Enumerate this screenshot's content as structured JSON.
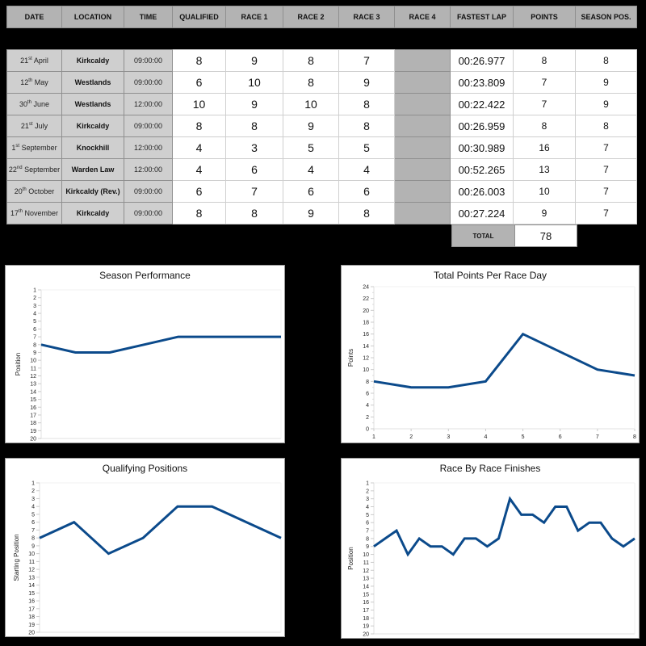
{
  "table": {
    "headers": [
      "DATE",
      "LOCATION",
      "TIME",
      "QUALIFIED",
      "RACE 1",
      "RACE 2",
      "RACE 3",
      "RACE 4",
      "FASTEST LAP",
      "POINTS",
      "SEASON POS."
    ],
    "rows": [
      {
        "day": "21",
        "suffix": "st",
        "month": "April",
        "location": "Kirkcaldy",
        "time": "09:00:00",
        "qualified": "8",
        "race1": "9",
        "race2": "8",
        "race3": "7",
        "race4": "",
        "fastest_lap": "00:26.977",
        "points": "8",
        "season_pos": "8"
      },
      {
        "day": "12",
        "suffix": "th",
        "month": "May",
        "location": "Westlands",
        "time": "09:00:00",
        "qualified": "6",
        "race1": "10",
        "race2": "8",
        "race3": "9",
        "race4": "",
        "fastest_lap": "00:23.809",
        "points": "7",
        "season_pos": "9"
      },
      {
        "day": "30",
        "suffix": "th",
        "month": "June",
        "location": "Westlands",
        "time": "12:00:00",
        "qualified": "10",
        "race1": "9",
        "race2": "10",
        "race3": "8",
        "race4": "",
        "fastest_lap": "00:22.422",
        "points": "7",
        "season_pos": "9"
      },
      {
        "day": "21",
        "suffix": "st",
        "month": "July",
        "location": "Kirkcaldy",
        "time": "09:00:00",
        "qualified": "8",
        "race1": "8",
        "race2": "9",
        "race3": "8",
        "race4": "",
        "fastest_lap": "00:26.959",
        "points": "8",
        "season_pos": "8"
      },
      {
        "day": "1",
        "suffix": "st",
        "month": "September",
        "location": "Knockhill",
        "time": "12:00:00",
        "qualified": "4",
        "race1": "3",
        "race2": "5",
        "race3": "5",
        "race4": "",
        "fastest_lap": "00:30.989",
        "points": "16",
        "season_pos": "7"
      },
      {
        "day": "22",
        "suffix": "nd",
        "month": "September",
        "location": "Warden Law",
        "time": "12:00:00",
        "qualified": "4",
        "race1": "6",
        "race2": "4",
        "race3": "4",
        "race4": "",
        "fastest_lap": "00:52.265",
        "points": "13",
        "season_pos": "7"
      },
      {
        "day": "20",
        "suffix": "th",
        "month": "October",
        "location": "Kirkcaldy (Rev.)",
        "time": "09:00:00",
        "qualified": "6",
        "race1": "7",
        "race2": "6",
        "race3": "6",
        "race4": "",
        "fastest_lap": "00:26.003",
        "points": "10",
        "season_pos": "7"
      },
      {
        "day": "17",
        "suffix": "th",
        "month": "November",
        "location": "Kirkcaldy",
        "time": "09:00:00",
        "qualified": "8",
        "race1": "8",
        "race2": "9",
        "race3": "8",
        "race4": "",
        "fastest_lap": "00:27.224",
        "points": "9",
        "season_pos": "7"
      }
    ],
    "total_label": "TOTAL",
    "total_value": "78"
  },
  "colors": {
    "line": "#0b4a8b",
    "header_bg": "#b3b3b3",
    "label_bg": "#cfcfcf",
    "page_bg": "#000000"
  },
  "chart_data": [
    {
      "type": "line",
      "title": "Season Performance",
      "xlabel": "",
      "ylabel": "Position",
      "ylim": [
        20,
        1
      ],
      "y_inverted": true,
      "y_ticks": [
        1,
        2,
        3,
        4,
        5,
        6,
        7,
        8,
        9,
        10,
        11,
        12,
        13,
        14,
        15,
        16,
        17,
        18,
        19,
        20
      ],
      "x_ticks": [],
      "x": [
        1,
        2,
        3,
        4,
        5,
        6,
        7,
        8
      ],
      "values": [
        8,
        9,
        9,
        8,
        7,
        7,
        7,
        7
      ],
      "grid": false,
      "legend": null
    },
    {
      "type": "line",
      "title": "Total Points Per Race Day",
      "xlabel": "",
      "ylabel": "Points",
      "ylim": [
        0,
        24
      ],
      "y_inverted": false,
      "y_ticks": [
        0,
        2,
        4,
        6,
        8,
        10,
        12,
        14,
        16,
        18,
        20,
        22,
        24
      ],
      "x_ticks": [
        1,
        2,
        3,
        4,
        5,
        6,
        7,
        8
      ],
      "x": [
        1,
        2,
        3,
        4,
        5,
        6,
        7,
        8
      ],
      "values": [
        8,
        7,
        7,
        8,
        16,
        13,
        10,
        9
      ],
      "grid": false,
      "legend": null
    },
    {
      "type": "line",
      "title": "Qualifying Positions",
      "xlabel": "",
      "ylabel": "Starting Position",
      "ylim": [
        20,
        1
      ],
      "y_inverted": true,
      "y_ticks": [
        1,
        2,
        3,
        4,
        5,
        6,
        7,
        8,
        9,
        10,
        11,
        12,
        13,
        14,
        15,
        16,
        17,
        18,
        19,
        20
      ],
      "x_ticks": [],
      "x": [
        1,
        2,
        3,
        4,
        5,
        6,
        7,
        8
      ],
      "values": [
        8,
        6,
        10,
        8,
        4,
        4,
        6,
        8
      ],
      "grid": false,
      "legend": null
    },
    {
      "type": "line",
      "title": "Race By Race Finishes",
      "xlabel": "",
      "ylabel": "Position",
      "ylim": [
        20,
        1
      ],
      "y_inverted": true,
      "y_ticks": [
        1,
        2,
        3,
        4,
        5,
        6,
        7,
        8,
        9,
        10,
        11,
        12,
        13,
        14,
        15,
        16,
        17,
        18,
        19,
        20
      ],
      "x_ticks": [],
      "x": [
        1,
        2,
        3,
        4,
        5,
        6,
        7,
        8,
        9,
        10,
        11,
        12,
        13,
        14,
        15,
        16,
        17,
        18,
        19,
        20,
        21,
        22,
        23,
        24
      ],
      "values": [
        9,
        8,
        7,
        10,
        8,
        9,
        9,
        10,
        8,
        8,
        9,
        8,
        3,
        5,
        5,
        6,
        4,
        4,
        7,
        6,
        6,
        8,
        9,
        8
      ],
      "grid": false,
      "legend": null
    }
  ]
}
